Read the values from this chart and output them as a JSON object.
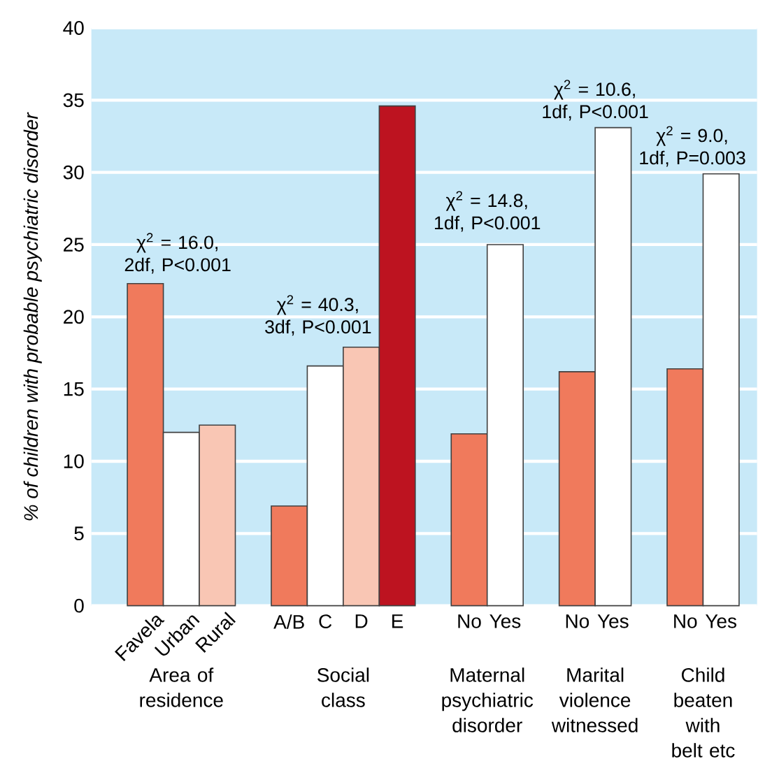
{
  "chart_data": {
    "type": "bar",
    "ylabel": "*% of children with probable psychiatric disorder*",
    "categories": [
      "Favela",
      "Urban",
      "Rural",
      null,
      "A/B",
      "C",
      "D",
      "E",
      null,
      "No",
      "Yes",
      null,
      "No",
      "Yes",
      null,
      "No",
      "Yes"
    ],
    "values": [
      22.3,
      12.0,
      12.5,
      null,
      6.9,
      16.6,
      17.9,
      34.6,
      null,
      11.9,
      25.0,
      null,
      16.2,
      33.1,
      null,
      16.4,
      29.9
    ],
    "colors": [
      "#f07a5c",
      "#ffffff",
      "#f9c6b4",
      null,
      "#f07a5c",
      "#ffffff",
      "#f9c6b4",
      "#bd1320",
      null,
      "#f07a5c",
      "#ffffff",
      null,
      "#f07a5c",
      "#ffffff",
      null,
      "#f07a5c",
      "#ffffff"
    ],
    "ylim": [
      0,
      40
    ],
    "yticks": [
      0,
      5,
      10,
      15,
      20,
      25,
      30,
      35,
      40
    ],
    "grid": "y",
    "annotations": [
      "χ$^{2}$ = 16.0, 2df, P<0.001",
      "χ$^{2}$ = 40.3, 3df, P<0.001",
      "χ$^{2}$ = 14.8, 1df, P<0.001",
      "χ$^{2}$ = 10.6, 1df, P<0.001",
      "χ$^{2}$ = 9.0, 1df, P=0.003",
      "Area of residence",
      "Social class",
      "Maternal psychiatric disorder",
      "Marital violence witnessed",
      "Child beaten with belt etc"
    ]
  }
}
